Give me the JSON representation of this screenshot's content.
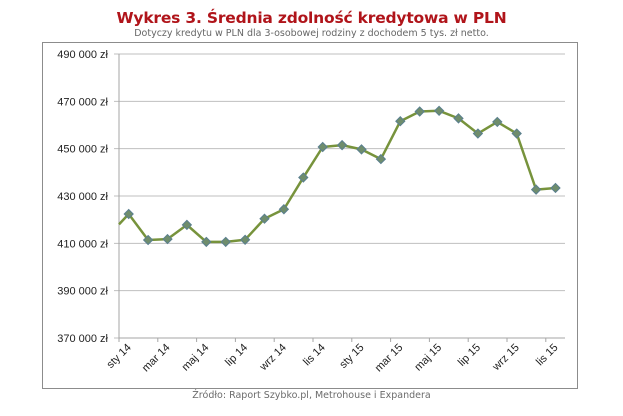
{
  "header": {
    "title": "Wykres 3. Średnia zdolność kredytowa w PLN",
    "subtitle": "Dotyczy kredytu w PLN dla 3-osobowej rodziny z dochodem 5 tys. zł netto."
  },
  "footer": {
    "source": "Źródło: Raport Szybko.pl, Metrohouse i Expandera"
  },
  "colors": {
    "title": "#b0141a",
    "line": "#77933c",
    "marker_fill": "#6f8d6c",
    "marker_stroke": "#5a7f8f",
    "grid": "#bfbfbf"
  },
  "chart_data": {
    "type": "line",
    "title": "Wykres 3. Średnia zdolność kredytowa w PLN",
    "subtitle": "Dotyczy kredytu w PLN dla 3-osobowej rodziny z dochodem 5 tys. zł netto.",
    "xlabel": "",
    "ylabel": "",
    "ylim": [
      370000,
      490000
    ],
    "y_ticks": [
      370000,
      390000,
      410000,
      430000,
      450000,
      470000,
      490000
    ],
    "y_tick_labels": [
      "370 000 zł",
      "390 000 zł",
      "410 000 zł",
      "430 000 zł",
      "450 000 zł",
      "470 000 zł",
      "490 000 zł"
    ],
    "x_tick_labels": [
      "sty 14",
      "mar 14",
      "maj 14",
      "lip 14",
      "wrz 14",
      "lis 14",
      "sty 15",
      "mar 15",
      "maj 15",
      "lip 15",
      "wrz 15",
      "lis 15"
    ],
    "grid": "horizontal",
    "legend": "none",
    "categories": [
      "sty 14",
      "lut 14",
      "mar 14",
      "kwi 14",
      "maj 14",
      "cze 14",
      "lip 14",
      "sie 14",
      "wrz 14",
      "paź 14",
      "lis 14",
      "gru 14",
      "sty 15",
      "lut 15",
      "mar 15",
      "kwi 15",
      "maj 15",
      "cze 15",
      "lip 15",
      "sie 15",
      "wrz 15",
      "paź 15",
      "lis 15"
    ],
    "series": [
      {
        "name": "Średnia zdolność kredytowa",
        "values": [
          422400,
          411400,
          411800,
          417800,
          410600,
          410600,
          411500,
          420400,
          424400,
          437800,
          450700,
          451500,
          449700,
          445600,
          461600,
          465700,
          466000,
          462800,
          456400,
          461300,
          456400,
          432700,
          433400
        ]
      }
    ],
    "line_starts_from_left_edge_value": 418000,
    "source": "Źródło: Raport Szybko.pl, Metrohouse i Expandera"
  }
}
